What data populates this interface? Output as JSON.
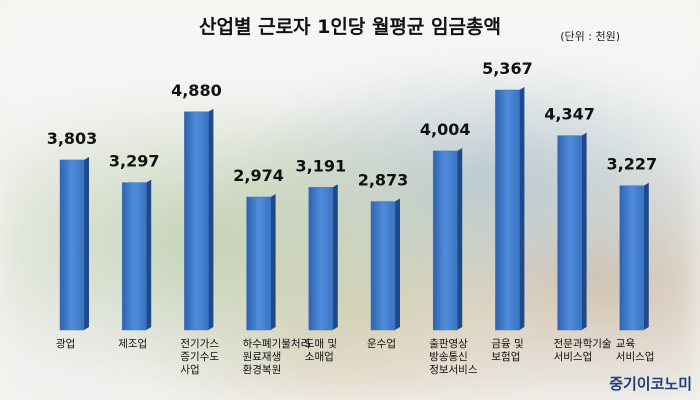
{
  "chart_data": {
    "type": "bar",
    "title": "산업별 근로자 1인당 월평균 임금총액",
    "subtitle": "(단위 : 천원)",
    "categories": [
      "광업",
      "제조업",
      "전기가스\n증기수도\n사업",
      "하수폐기물처리\n원료재생\n환경복원",
      "도매 및\n소매업",
      "운수업",
      "출판영상\n방송통신\n정보서비스",
      "금융 및\n보험업",
      "전문과학기술\n서비스업",
      "교육\n서비스업"
    ],
    "values": [
      3803,
      3297,
      4880,
      2974,
      3191,
      2873,
      4004,
      5367,
      4347,
      3227
    ],
    "value_labels": [
      "3,803",
      "3,297",
      "4,880",
      "2,974",
      "3,191",
      "2,873",
      "4,004",
      "5,367",
      "4,347",
      "3,227"
    ],
    "color": "#3d78c8",
    "watermark": "중기이코노미"
  }
}
